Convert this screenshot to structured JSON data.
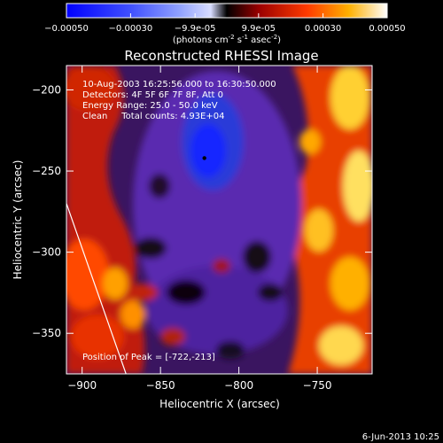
{
  "chart_data": {
    "type": "heatmap",
    "title": "Reconstructed RHESSI Image",
    "xlabel": "Heliocentric X (arcsec)",
    "ylabel": "Heliocentric Y (arcsec)",
    "xlim": [
      -910,
      -715
    ],
    "ylim": [
      -375,
      -185
    ],
    "x_ticks": [
      -900,
      -850,
      -800,
      -750
    ],
    "y_ticks": [
      -200,
      -250,
      -300,
      -350
    ],
    "colorbar": {
      "range": [
        -0.0005,
        0.0005
      ],
      "ticks": [
        {
          "value": -0.0005,
          "label": "-0.00050"
        },
        {
          "value": -0.0003,
          "label": "-0.00030"
        },
        {
          "value": -9.9e-05,
          "label": "-9.9e-05"
        },
        {
          "value": 9.9e-05,
          "label": "9.9e-05"
        },
        {
          "value": 0.0003,
          "label": "0.00030"
        },
        {
          "value": 0.0005,
          "label": "0.00050"
        }
      ],
      "unit_parts": [
        "(photons cm",
        "-2",
        " s",
        "-1",
        " asec",
        "-2",
        ")"
      ]
    },
    "annotations": [
      "10-Aug-2003 16:25:56.000 to 16:30:50.000",
      "Detectors: 4F 5F 6F 7F 8F, Att 0",
      "Energy Range: 25.0 - 50.0 keV",
      "Clean     Total counts: 4.93E+04"
    ],
    "peak_label": "Position of Peak = [-722,-213]",
    "marker_point": [
      -822,
      -242
    ],
    "limb_line": [
      [
        -910,
        -270
      ],
      [
        -872,
        -375
      ]
    ],
    "grid": false
  },
  "footer": {
    "date": "6-Jun-2013 10:25"
  },
  "colors": {
    "background": "#000000",
    "text": "#ffffff"
  }
}
